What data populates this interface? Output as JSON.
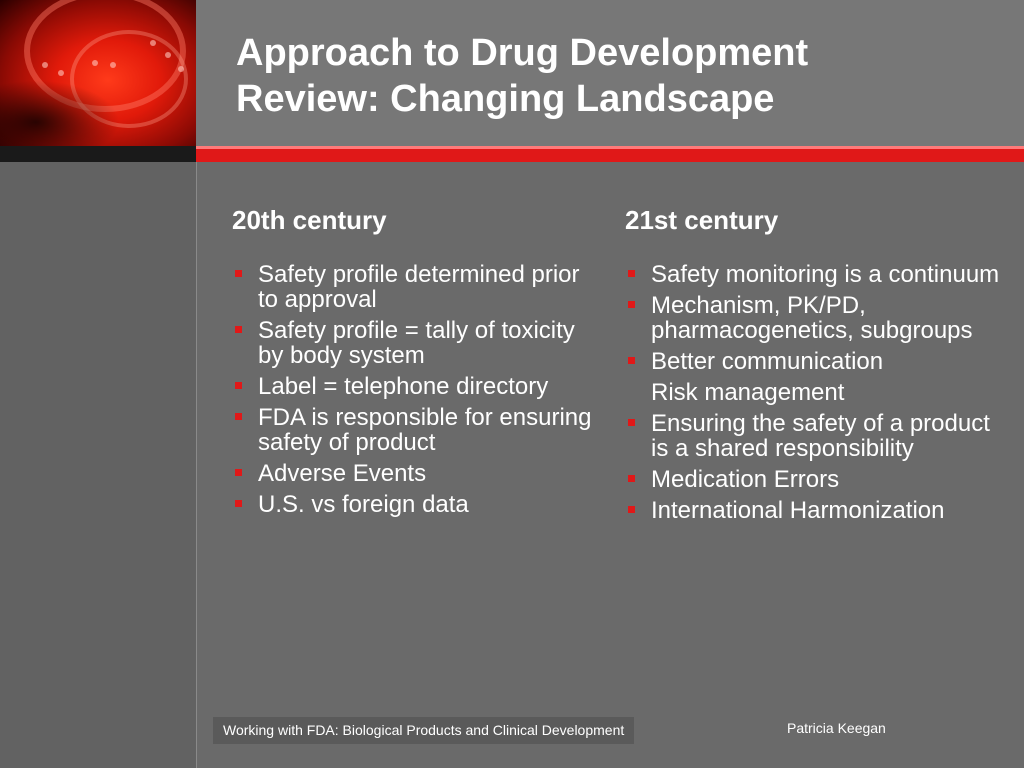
{
  "slide": {
    "title_line1": "Approach to Drug Development",
    "title_line2": "Review: Changing Landscape"
  },
  "left_column": {
    "heading": "20th century",
    "items": [
      {
        "text": "Safety profile determined prior to approval",
        "bullet": true
      },
      {
        "text": "Safety profile = tally of toxicity by body system",
        "bullet": true
      },
      {
        "text": "Label = telephone directory",
        "bullet": true
      },
      {
        "text": "FDA is responsible for ensuring safety of product",
        "bullet": true
      },
      {
        "text": "Adverse Events",
        "bullet": true
      },
      {
        "text": "U.S. vs foreign data",
        "bullet": true
      }
    ]
  },
  "right_column": {
    "heading": "21st century",
    "items": [
      {
        "text": "Safety monitoring is a continuum",
        "bullet": true
      },
      {
        "text": "Mechanism, PK/PD, pharmacogenetics, subgroups",
        "bullet": true
      },
      {
        "text": "Better communication",
        "bullet": true
      },
      {
        "text": "Risk management",
        "bullet": false
      },
      {
        "text": "Ensuring the safety of a product is a shared responsibility",
        "bullet": true
      },
      {
        "text": "Medication Errors",
        "bullet": true
      },
      {
        "text": "International Harmonization",
        "bullet": true
      }
    ]
  },
  "footer": {
    "left_text": "Working with FDA: Biological Products and Clinical Development",
    "right_text": "Patricia Keegan"
  },
  "colors": {
    "accent_red": "#e01818",
    "background": "#6a6a6a",
    "header": "#777777"
  },
  "icons": {
    "header_image": "red-abstract-header-image",
    "bullet": "square-bullet-icon"
  }
}
